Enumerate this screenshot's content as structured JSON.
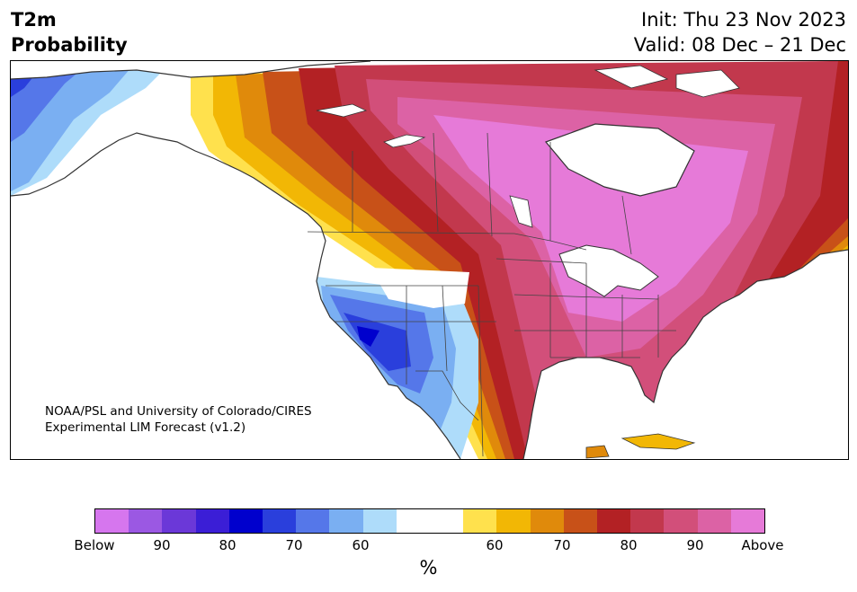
{
  "header": {
    "title_line1": "T2m",
    "title_line2": "Probability",
    "init": "Init: Thu 23 Nov 2023",
    "valid": "Valid: 08 Dec – 21 Dec"
  },
  "map": {
    "credit_line1": "NOAA/PSL and University of Colorado/CIRES",
    "credit_line2": "Experimental LIM Forecast (v1.2)"
  },
  "colorbar": {
    "colors": [
      "#d676ee",
      "#9b58e3",
      "#6b38d8",
      "#3b1ed6",
      "#0000cd",
      "#2a3fdc",
      "#5577e9",
      "#7aaff2",
      "#aedcfa",
      "#ffffff",
      "#ffffff",
      "#ffe14d",
      "#f2b705",
      "#e08a0b",
      "#c85118",
      "#b32124",
      "#c2384d",
      "#d24f7a",
      "#dc62a5",
      "#e67ad8"
    ],
    "labels": [
      "Below",
      "90",
      "80",
      "70",
      "60",
      "60",
      "70",
      "80",
      "90",
      "Above"
    ],
    "unit": "%"
  }
}
